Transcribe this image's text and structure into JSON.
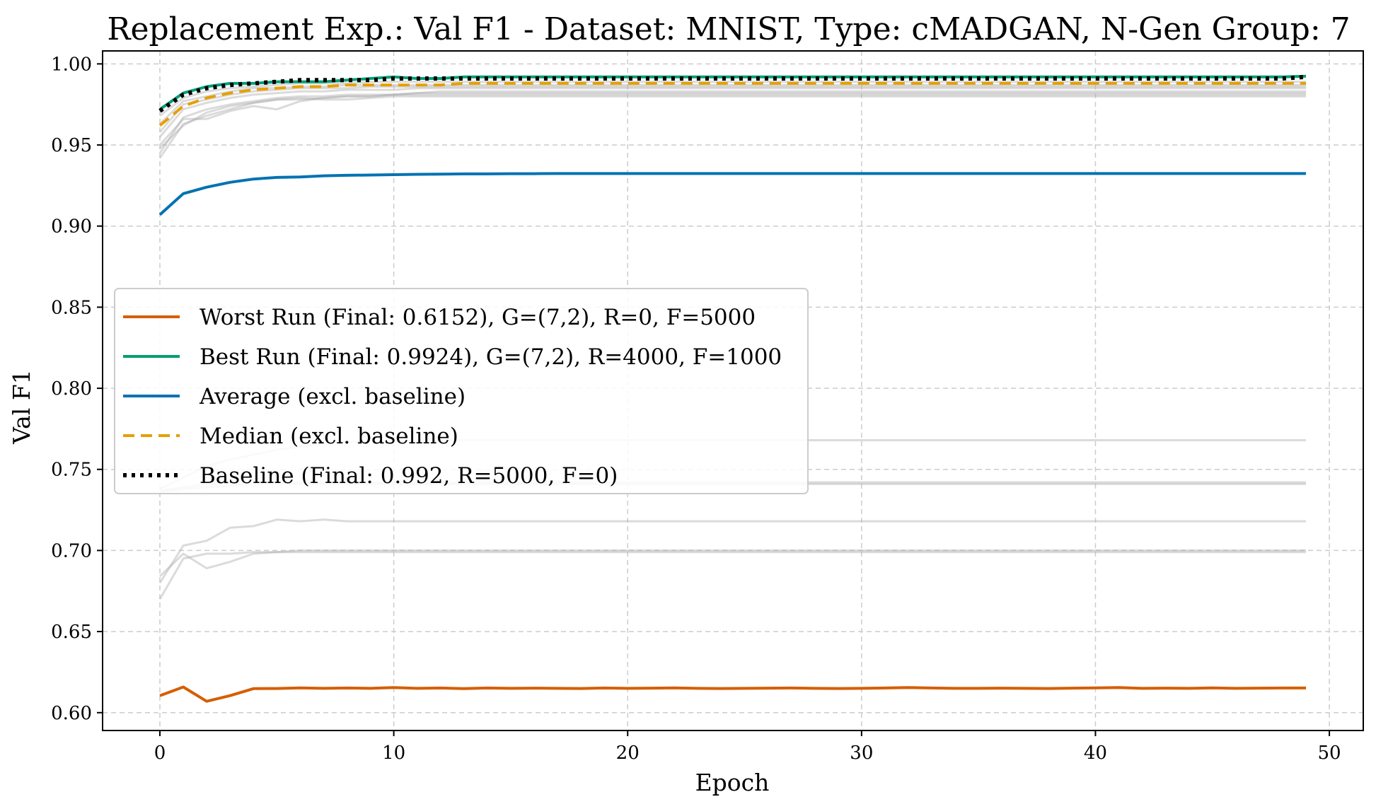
{
  "chart_data": {
    "type": "line",
    "title": "Replacement Exp.: Val F1 - Dataset: MNIST, Type: cMADGAN, N-Gen Group: 7",
    "xlabel": "Epoch",
    "ylabel": "Val F1",
    "xlim": [
      -2.45,
      51.45
    ],
    "ylim": [
      0.589,
      1.008
    ],
    "x_ticks": [
      0,
      10,
      20,
      30,
      40,
      50
    ],
    "y_ticks": [
      0.6,
      0.65,
      0.7,
      0.75,
      0.8,
      0.85,
      0.9,
      0.95,
      1.0
    ],
    "x_tick_labels": [
      "0",
      "10",
      "20",
      "30",
      "40",
      "50"
    ],
    "y_tick_labels": [
      "0.60",
      "0.65",
      "0.70",
      "0.75",
      "0.80",
      "0.85",
      "0.90",
      "0.95",
      "1.00"
    ],
    "grid": true,
    "legend_position": "center-left",
    "x": [
      0,
      1,
      2,
      3,
      4,
      5,
      6,
      7,
      8,
      9,
      10,
      11,
      12,
      13,
      14,
      15,
      16,
      17,
      18,
      19,
      20,
      21,
      22,
      23,
      24,
      25,
      26,
      27,
      28,
      29,
      30,
      31,
      32,
      33,
      34,
      35,
      36,
      37,
      38,
      39,
      40,
      41,
      42,
      43,
      44,
      45,
      46,
      47,
      48,
      49
    ],
    "series": [
      {
        "name": "Worst Run (Final: 0.6152), G=(7,2), R=0, F=5000",
        "color": "#d55e00",
        "style": "solid",
        "values": [
          0.6105,
          0.6158,
          0.607,
          0.6105,
          0.6148,
          0.6149,
          0.6153,
          0.615,
          0.6152,
          0.615,
          0.6155,
          0.615,
          0.6152,
          0.6148,
          0.6152,
          0.615,
          0.6151,
          0.615,
          0.6149,
          0.6152,
          0.615,
          0.6151,
          0.6153,
          0.615,
          0.6149,
          0.615,
          0.6151,
          0.6152,
          0.615,
          0.6149,
          0.615,
          0.6152,
          0.6155,
          0.6152,
          0.615,
          0.615,
          0.6151,
          0.615,
          0.6149,
          0.6151,
          0.6153,
          0.6155,
          0.615,
          0.6151,
          0.615,
          0.6153,
          0.615,
          0.6151,
          0.6152,
          0.6152
        ]
      },
      {
        "name": "Best Run (Final: 0.9924), G=(7,2), R=4000, F=1000",
        "color": "#009e73",
        "style": "solid",
        "values": [
          0.972,
          0.982,
          0.986,
          0.988,
          0.988,
          0.989,
          0.989,
          0.989,
          0.99,
          0.991,
          0.992,
          0.991,
          0.991,
          0.992,
          0.992,
          0.992,
          0.992,
          0.992,
          0.992,
          0.992,
          0.992,
          0.992,
          0.992,
          0.992,
          0.992,
          0.992,
          0.992,
          0.992,
          0.992,
          0.992,
          0.992,
          0.992,
          0.992,
          0.992,
          0.992,
          0.992,
          0.992,
          0.992,
          0.992,
          0.992,
          0.992,
          0.992,
          0.992,
          0.992,
          0.992,
          0.992,
          0.992,
          0.992,
          0.992,
          0.9924
        ]
      },
      {
        "name": "Average (excl. baseline)",
        "color": "#0072b2",
        "style": "solid",
        "values": [
          0.907,
          0.92,
          0.924,
          0.927,
          0.929,
          0.93,
          0.9303,
          0.931,
          0.9313,
          0.9315,
          0.9317,
          0.9319,
          0.932,
          0.9322,
          0.9322,
          0.9323,
          0.9323,
          0.9324,
          0.9324,
          0.9324,
          0.9324,
          0.9324,
          0.9324,
          0.9324,
          0.9324,
          0.9324,
          0.9324,
          0.9324,
          0.9324,
          0.9324,
          0.9324,
          0.9324,
          0.9324,
          0.9324,
          0.9324,
          0.9324,
          0.9324,
          0.9324,
          0.9324,
          0.9324,
          0.9324,
          0.9324,
          0.9324,
          0.9324,
          0.9324,
          0.9324,
          0.9324,
          0.9324,
          0.9324,
          0.9324
        ]
      },
      {
        "name": "Median (excl. baseline)",
        "color": "#e69f00",
        "style": "dashed",
        "values": [
          0.962,
          0.974,
          0.979,
          0.982,
          0.984,
          0.985,
          0.986,
          0.986,
          0.987,
          0.987,
          0.987,
          0.987,
          0.987,
          0.988,
          0.988,
          0.988,
          0.988,
          0.988,
          0.988,
          0.988,
          0.988,
          0.988,
          0.988,
          0.988,
          0.988,
          0.988,
          0.988,
          0.988,
          0.988,
          0.988,
          0.988,
          0.988,
          0.988,
          0.988,
          0.988,
          0.988,
          0.988,
          0.988,
          0.988,
          0.988,
          0.988,
          0.988,
          0.988,
          0.988,
          0.988,
          0.988,
          0.988,
          0.988,
          0.988,
          0.988
        ]
      },
      {
        "name": "Baseline (Final: 0.992, R=5000, F=0)",
        "color": "#000000",
        "style": "dotted",
        "values": [
          0.971,
          0.981,
          0.985,
          0.987,
          0.988,
          0.989,
          0.99,
          0.99,
          0.99,
          0.99,
          0.991,
          0.991,
          0.991,
          0.991,
          0.991,
          0.991,
          0.991,
          0.991,
          0.991,
          0.991,
          0.991,
          0.991,
          0.991,
          0.991,
          0.991,
          0.991,
          0.991,
          0.991,
          0.991,
          0.991,
          0.991,
          0.991,
          0.991,
          0.991,
          0.991,
          0.991,
          0.991,
          0.991,
          0.991,
          0.991,
          0.991,
          0.991,
          0.991,
          0.991,
          0.991,
          0.991,
          0.991,
          0.991,
          0.991,
          0.992
        ]
      }
    ],
    "background_runs": {
      "color": "#b0b0b0",
      "runs": [
        [
          0.945,
          0.967,
          0.972,
          0.975,
          0.977,
          0.979,
          0.98,
          0.98,
          0.981,
          0.981,
          0.981,
          0.982,
          0.982,
          0.982,
          0.982,
          0.982,
          0.982,
          0.982,
          0.982,
          0.982,
          0.982,
          0.982,
          0.982,
          0.982,
          0.982,
          0.982,
          0.982,
          0.982,
          0.982,
          0.982,
          0.982,
          0.982,
          0.982,
          0.982,
          0.982,
          0.982,
          0.982,
          0.982,
          0.982,
          0.982,
          0.982,
          0.982,
          0.982,
          0.982,
          0.982,
          0.982,
          0.982,
          0.982,
          0.982,
          0.982
        ],
        [
          0.942,
          0.963,
          0.968,
          0.972,
          0.976,
          0.978,
          0.978,
          0.979,
          0.98,
          0.98,
          0.981,
          0.981,
          0.981,
          0.981,
          0.981,
          0.981,
          0.981,
          0.981,
          0.981,
          0.981,
          0.981,
          0.981,
          0.981,
          0.981,
          0.981,
          0.981,
          0.981,
          0.981,
          0.981,
          0.981,
          0.981,
          0.981,
          0.981,
          0.981,
          0.981,
          0.981,
          0.981,
          0.981,
          0.981,
          0.981,
          0.981,
          0.981,
          0.981,
          0.981,
          0.981,
          0.981,
          0.981,
          0.981,
          0.981,
          0.981
        ],
        [
          0.95,
          0.966,
          0.966,
          0.971,
          0.974,
          0.972,
          0.977,
          0.979,
          0.98,
          0.98,
          0.981,
          0.982,
          0.983,
          0.983,
          0.983,
          0.983,
          0.983,
          0.983,
          0.983,
          0.983,
          0.983,
          0.983,
          0.983,
          0.983,
          0.983,
          0.983,
          0.983,
          0.983,
          0.983,
          0.983,
          0.983,
          0.983,
          0.983,
          0.983,
          0.983,
          0.983,
          0.983,
          0.983,
          0.983,
          0.983,
          0.983,
          0.983,
          0.983,
          0.983,
          0.983,
          0.983,
          0.983,
          0.983,
          0.983,
          0.983
        ],
        [
          0.955,
          0.972,
          0.976,
          0.979,
          0.981,
          0.982,
          0.983,
          0.983,
          0.984,
          0.984,
          0.984,
          0.985,
          0.985,
          0.985,
          0.985,
          0.985,
          0.985,
          0.985,
          0.985,
          0.985,
          0.985,
          0.985,
          0.985,
          0.985,
          0.985,
          0.985,
          0.985,
          0.985,
          0.985,
          0.985,
          0.985,
          0.985,
          0.985,
          0.985,
          0.985,
          0.985,
          0.985,
          0.985,
          0.985,
          0.985,
          0.985,
          0.985,
          0.985,
          0.985,
          0.985,
          0.985,
          0.985,
          0.985,
          0.985,
          0.985
        ],
        [
          0.958,
          0.975,
          0.978,
          0.981,
          0.983,
          0.984,
          0.985,
          0.985,
          0.985,
          0.986,
          0.986,
          0.986,
          0.986,
          0.986,
          0.986,
          0.986,
          0.986,
          0.986,
          0.986,
          0.986,
          0.986,
          0.986,
          0.986,
          0.986,
          0.986,
          0.986,
          0.986,
          0.986,
          0.986,
          0.986,
          0.986,
          0.986,
          0.986,
          0.986,
          0.986,
          0.986,
          0.986,
          0.986,
          0.986,
          0.986,
          0.986,
          0.986,
          0.986,
          0.986,
          0.986,
          0.986,
          0.986,
          0.986,
          0.986,
          0.986
        ],
        [
          0.963,
          0.977,
          0.98,
          0.983,
          0.985,
          0.985,
          0.986,
          0.986,
          0.987,
          0.987,
          0.987,
          0.987,
          0.987,
          0.987,
          0.987,
          0.987,
          0.987,
          0.987,
          0.987,
          0.987,
          0.987,
          0.987,
          0.987,
          0.987,
          0.987,
          0.987,
          0.987,
          0.987,
          0.987,
          0.987,
          0.987,
          0.987,
          0.987,
          0.987,
          0.987,
          0.987,
          0.987,
          0.987,
          0.987,
          0.987,
          0.987,
          0.987,
          0.987,
          0.987,
          0.987,
          0.987,
          0.987,
          0.987,
          0.987,
          0.987
        ],
        [
          0.968,
          0.979,
          0.983,
          0.985,
          0.986,
          0.987,
          0.988,
          0.988,
          0.988,
          0.989,
          0.989,
          0.989,
          0.989,
          0.989,
          0.989,
          0.989,
          0.989,
          0.989,
          0.989,
          0.989,
          0.989,
          0.989,
          0.989,
          0.989,
          0.989,
          0.989,
          0.989,
          0.989,
          0.989,
          0.989,
          0.989,
          0.989,
          0.989,
          0.989,
          0.989,
          0.989,
          0.989,
          0.989,
          0.989,
          0.989,
          0.989,
          0.989,
          0.989,
          0.989,
          0.989,
          0.989,
          0.989,
          0.989,
          0.989,
          0.989
        ],
        [
          0.948,
          0.962,
          0.97,
          0.974,
          0.976,
          0.978,
          0.979,
          0.978,
          0.978,
          0.979,
          0.98,
          0.98,
          0.98,
          0.98,
          0.98,
          0.98,
          0.98,
          0.98,
          0.98,
          0.98,
          0.98,
          0.98,
          0.98,
          0.98,
          0.98,
          0.98,
          0.98,
          0.98,
          0.98,
          0.98,
          0.98,
          0.98,
          0.98,
          0.98,
          0.98,
          0.98,
          0.98,
          0.98,
          0.98,
          0.98,
          0.98,
          0.98,
          0.98,
          0.98,
          0.98,
          0.98,
          0.98,
          0.98,
          0.98,
          0.98
        ],
        [
          0.737,
          0.739,
          0.741,
          0.741,
          0.742,
          0.742,
          0.742,
          0.742,
          0.742,
          0.742,
          0.742,
          0.742,
          0.742,
          0.742,
          0.742,
          0.742,
          0.742,
          0.742,
          0.742,
          0.742,
          0.742,
          0.742,
          0.742,
          0.742,
          0.742,
          0.742,
          0.742,
          0.742,
          0.742,
          0.742,
          0.742,
          0.742,
          0.742,
          0.742,
          0.742,
          0.742,
          0.742,
          0.742,
          0.742,
          0.742,
          0.742,
          0.742,
          0.742,
          0.742,
          0.742,
          0.742,
          0.742,
          0.742,
          0.742,
          0.742
        ],
        [
          0.736,
          0.738,
          0.739,
          0.74,
          0.741,
          0.741,
          0.741,
          0.741,
          0.741,
          0.741,
          0.741,
          0.741,
          0.741,
          0.741,
          0.741,
          0.741,
          0.741,
          0.741,
          0.741,
          0.741,
          0.741,
          0.741,
          0.741,
          0.741,
          0.741,
          0.741,
          0.741,
          0.741,
          0.741,
          0.741,
          0.741,
          0.741,
          0.741,
          0.741,
          0.741,
          0.741,
          0.741,
          0.741,
          0.741,
          0.741,
          0.741,
          0.741,
          0.741,
          0.741,
          0.741,
          0.741,
          0.741,
          0.741,
          0.741,
          0.741
        ],
        [
          0.738,
          0.745,
          0.752,
          0.756,
          0.759,
          0.762,
          0.764,
          0.766,
          0.767,
          0.767,
          0.767,
          0.768,
          0.768,
          0.768,
          0.768,
          0.768,
          0.768,
          0.768,
          0.768,
          0.768,
          0.768,
          0.768,
          0.768,
          0.768,
          0.768,
          0.768,
          0.768,
          0.768,
          0.768,
          0.768,
          0.768,
          0.768,
          0.768,
          0.768,
          0.768,
          0.768,
          0.768,
          0.768,
          0.768,
          0.768,
          0.768,
          0.768,
          0.768,
          0.768,
          0.768,
          0.768,
          0.768,
          0.768,
          0.768,
          0.768
        ],
        [
          0.68,
          0.703,
          0.706,
          0.714,
          0.715,
          0.719,
          0.718,
          0.719,
          0.718,
          0.718,
          0.718,
          0.718,
          0.718,
          0.718,
          0.718,
          0.718,
          0.718,
          0.718,
          0.718,
          0.718,
          0.718,
          0.718,
          0.718,
          0.718,
          0.718,
          0.718,
          0.718,
          0.718,
          0.718,
          0.718,
          0.718,
          0.718,
          0.718,
          0.718,
          0.718,
          0.718,
          0.718,
          0.718,
          0.718,
          0.718,
          0.718,
          0.718,
          0.718,
          0.718,
          0.718,
          0.718,
          0.718,
          0.718,
          0.718,
          0.718
        ],
        [
          0.684,
          0.698,
          0.689,
          0.693,
          0.698,
          0.699,
          0.7,
          0.7,
          0.7,
          0.7,
          0.7,
          0.7,
          0.7,
          0.7,
          0.7,
          0.7,
          0.7,
          0.7,
          0.7,
          0.7,
          0.7,
          0.7,
          0.7,
          0.7,
          0.7,
          0.7,
          0.7,
          0.7,
          0.7,
          0.7,
          0.7,
          0.7,
          0.7,
          0.7,
          0.7,
          0.7,
          0.7,
          0.7,
          0.7,
          0.7,
          0.7,
          0.7,
          0.7,
          0.7,
          0.7,
          0.7,
          0.7,
          0.7,
          0.7,
          0.7
        ],
        [
          0.67,
          0.695,
          0.698,
          0.698,
          0.699,
          0.699,
          0.699,
          0.699,
          0.699,
          0.699,
          0.699,
          0.699,
          0.699,
          0.699,
          0.699,
          0.699,
          0.699,
          0.699,
          0.699,
          0.699,
          0.699,
          0.699,
          0.699,
          0.699,
          0.699,
          0.699,
          0.699,
          0.699,
          0.699,
          0.699,
          0.699,
          0.699,
          0.699,
          0.699,
          0.699,
          0.699,
          0.699,
          0.699,
          0.699,
          0.699,
          0.699,
          0.699,
          0.699,
          0.699,
          0.699,
          0.699,
          0.699,
          0.699,
          0.699,
          0.699
        ]
      ]
    }
  }
}
